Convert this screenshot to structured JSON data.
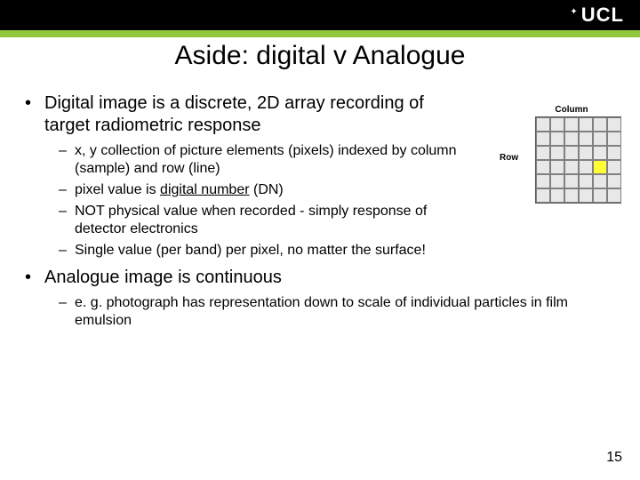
{
  "header": {
    "logo_text": "UCL",
    "logo_symbol": "✦",
    "bar_color": "#000000",
    "accent_color": "#92c83e"
  },
  "title": "Aside: digital v Analogue",
  "bullets": [
    {
      "text": "Digital image is a discrete, 2D array recording of target radiometric response",
      "sub": [
        {
          "text": "x, y collection of picture elements (pixels) indexed by column (sample) and row (line)"
        },
        {
          "html": "pixel value is <span class=\"underline\">digital number</span> (DN)"
        },
        {
          "text": "NOT physical value when recorded - simply response of detector electronics"
        },
        {
          "text": "Single value (per band) per pixel, no matter the surface!"
        }
      ]
    },
    {
      "text": "Analogue image is continuous",
      "sub": [
        {
          "text": "e. g. photograph has representation down to scale of individual particles in film emulsion"
        }
      ]
    }
  ],
  "figure": {
    "col_label": "Column",
    "row_label": "Row",
    "grid_size": 6,
    "highlight_cell": {
      "row": 3,
      "col": 4
    },
    "cell_color": "#e8e8e8",
    "highlight_color": "#ffff33",
    "border_color": "#808080"
  },
  "page_number": "15"
}
